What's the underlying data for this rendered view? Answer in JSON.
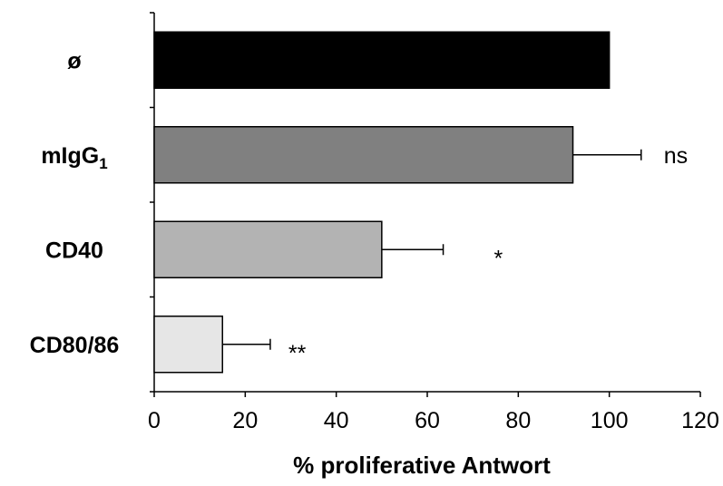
{
  "chart_data": {
    "type": "bar",
    "orientation": "horizontal",
    "categories": [
      "ø",
      "mIgG1",
      "CD40",
      "CD80/86"
    ],
    "category_labels": [
      {
        "main": "ø",
        "sub": ""
      },
      {
        "main": "mIgG",
        "sub": "1"
      },
      {
        "main": "CD40",
        "sub": ""
      },
      {
        "main": "CD80/86",
        "sub": ""
      }
    ],
    "values": [
      100,
      92,
      50,
      15
    ],
    "errors": [
      null,
      15,
      13.5,
      10.5
    ],
    "annotations": [
      "",
      "ns",
      "*",
      "**"
    ],
    "colors": [
      "#000000",
      "#808080",
      "#b3b3b3",
      "#e6e6e6"
    ],
    "xlabel": "% proliferative Antwort",
    "ylabel": "",
    "xlim": [
      0,
      120
    ],
    "xticks": [
      0,
      20,
      40,
      60,
      80,
      100,
      120
    ],
    "grid": false,
    "legend": "none"
  }
}
